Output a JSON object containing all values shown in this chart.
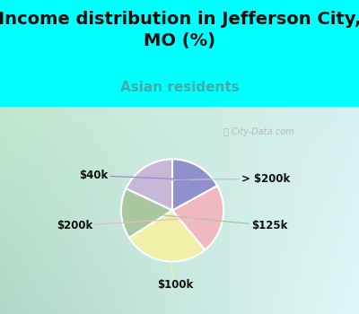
{
  "title": "Income distribution in Jefferson City,\nMO (%)",
  "subtitle": "Asian residents",
  "title_color": "#111111",
  "subtitle_color": "#44aaaa",
  "top_bg_color": "#00FFFF",
  "labels": [
    "> $200k",
    "$125k",
    "$100k",
    "$200k",
    "$40k"
  ],
  "values": [
    18,
    16,
    27,
    22,
    17
  ],
  "colors": [
    "#c8b8d8",
    "#aac8a0",
    "#f0f0a8",
    "#f0b8c0",
    "#9090cc"
  ],
  "label_fontsize": 8.5,
  "title_fontsize": 14,
  "subtitle_fontsize": 11,
  "startangle": 90,
  "watermark": "City-Data.com"
}
